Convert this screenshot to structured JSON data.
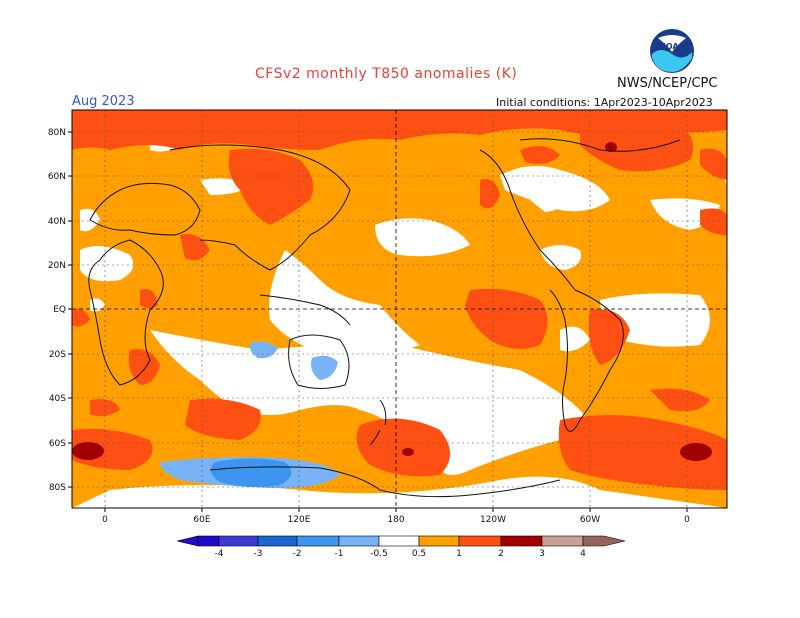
{
  "title": "CFSv2 monthly T850 anomalies (K)",
  "agency": "NWS/NCEP/CPC",
  "logo_text": "NOAA",
  "valid_month": "Aug 2023",
  "initial_conditions": "Initial conditions: 1Apr2023-10Apr2023",
  "lat_labels": [
    "80N",
    "60N",
    "40N",
    "20N",
    "EQ",
    "20S",
    "40S",
    "60S",
    "80S"
  ],
  "lon_labels": [
    "0",
    "60E",
    "120E",
    "180",
    "120W",
    "60W",
    "0"
  ],
  "colorbar": {
    "levels": [
      "-4",
      "-3",
      "-2",
      "-1",
      "-0.5",
      "0.5",
      "1",
      "2",
      "3",
      "4"
    ],
    "colors": [
      "#1e0cc8",
      "#3c3cd2",
      "#1e64d2",
      "#3c96f0",
      "#78b4f5",
      "#ffffff",
      "#ffa000",
      "#ff5014",
      "#e01e0a",
      "#a00000",
      "#c8a096",
      "#96645a"
    ]
  },
  "legend_colors": {
    "background": "#ffa000",
    "warm": "#ff5014",
    "strong_warm": "#a00000",
    "near_normal": "#ffffff",
    "cool": "#78b4f5",
    "strong_cool": "#3c96f0"
  }
}
